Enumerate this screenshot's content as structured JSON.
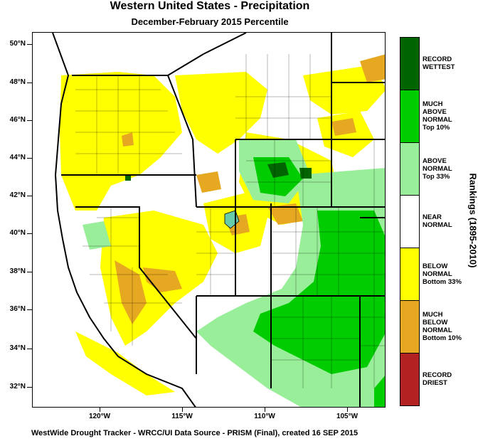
{
  "title": "Western United States - Precipitation",
  "subtitle": "December-February 2015 Percentile",
  "latitude_labels": [
    "50°N",
    "48°N",
    "46°N",
    "44°N",
    "42°N",
    "40°N",
    "38°N",
    "36°N",
    "34°N",
    "32°N"
  ],
  "longitude_labels": [
    "120°W",
    "115°W",
    "110°W",
    "105°W"
  ],
  "legend": {
    "title": "Rankings (1895-2010)",
    "categories": [
      {
        "lines": [
          "RECORD",
          "WETTEST"
        ],
        "color": "#006400"
      },
      {
        "lines": [
          "MUCH",
          "ABOVE",
          "NORMAL",
          "Top 10%"
        ],
        "color": "#00cc00"
      },
      {
        "lines": [
          "ABOVE",
          "NORMAL",
          "Top 33%"
        ],
        "color": "#99ee99"
      },
      {
        "lines": [
          "NEAR",
          "NORMAL"
        ],
        "color": "#ffffff"
      },
      {
        "lines": [
          "BELOW",
          "NORMAL",
          "Bottom 33%"
        ],
        "color": "#ffff00"
      },
      {
        "lines": [
          "MUCH",
          "BELOW",
          "NORMAL",
          "Bottom 10%"
        ],
        "color": "#e6a820"
      },
      {
        "lines": [
          "RECORD",
          "DRIEST"
        ],
        "color": "#b22222"
      }
    ]
  },
  "footer": "WestWide Drought Tracker - WRCC/UI  Data Source - PRISM (Final), created 16 SEP 2015"
}
